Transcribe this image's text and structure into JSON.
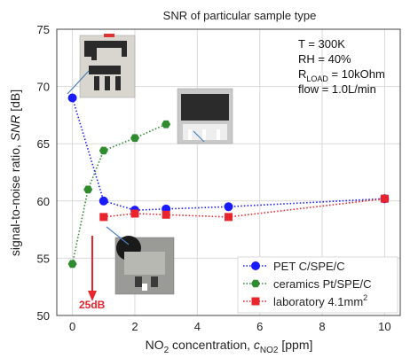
{
  "chart_data": {
    "type": "line",
    "title": "SNR of particular sample type",
    "xlabel": "NO2 concentration, cNO2 [ppm]",
    "ylabel": "signal-to-noise ratio, SNR [dB]",
    "xlim": [
      -0.5,
      10.5
    ],
    "ylim": [
      50,
      75
    ],
    "xticks": [
      0,
      2,
      4,
      6,
      8,
      10
    ],
    "yticks": [
      50,
      55,
      60,
      65,
      70,
      75
    ],
    "grid": true,
    "legend_position": "bottom-right",
    "series": [
      {
        "name": "PET C/SPE/C",
        "color": "#1a1aff",
        "marker": "circle",
        "line": "dotted",
        "x": [
          0,
          1,
          2,
          3,
          5,
          10
        ],
        "y": [
          69.0,
          60.0,
          59.2,
          59.3,
          59.5,
          60.2
        ]
      },
      {
        "name": "ceramics Pt/SPE/C",
        "color": "#2e8b2e",
        "marker": "hexagon",
        "line": "dotted",
        "x": [
          0,
          0.5,
          1,
          2,
          3
        ],
        "y": [
          54.5,
          61.0,
          64.4,
          65.5,
          66.7
        ]
      },
      {
        "name": "laboratory 4.1mm²",
        "color": "#e8242c",
        "marker": "square",
        "line": "dotted",
        "x": [
          1,
          2,
          3,
          5,
          10
        ],
        "y": [
          58.6,
          58.9,
          58.8,
          58.6,
          60.2
        ]
      }
    ],
    "annotations": {
      "conditions": [
        "T = 300K",
        "RH = 40%",
        "RLOAD = 10kOhm",
        "flow = 1.0L/min"
      ],
      "arrow_label": "25dB"
    }
  },
  "text": {
    "title": "SNR of particular sample type",
    "ylabel_pre": "signal-to-noise ratio, ",
    "ylabel_var": "SNR",
    "ylabel_post": " [dB]",
    "xlabel_pre": "NO",
    "xlabel_sub": "2",
    "xlabel_mid": " concentration, ",
    "xlabel_var": "c",
    "xlabel_var_sub": "NO2",
    "xlabel_post": " [ppm]",
    "cond_t": "T = 300K",
    "cond_rh": "RH = 40%",
    "cond_r_pre": "R",
    "cond_r_sub": "LOAD",
    "cond_r_post": " = 10kOhm",
    "cond_flow": "flow = 1.0L/min",
    "arrow_label": "25dB",
    "legend": [
      "PET C/SPE/C",
      "ceramics Pt/SPE/C",
      "laboratory 4.1mm"
    ],
    "legend_sup": "2"
  },
  "colors": {
    "pet": "#1a1aff",
    "ceramics": "#2e8b2e",
    "laboratory": "#e8242c",
    "arrow": "#e8242c",
    "grid": "#d9d9d9",
    "callout": "#4a7fc1"
  }
}
